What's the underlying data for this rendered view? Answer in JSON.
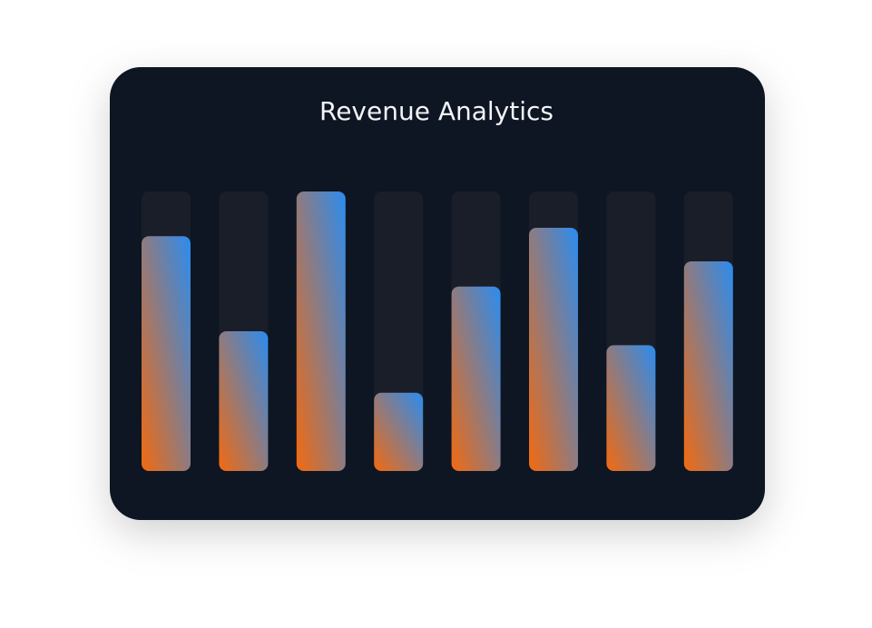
{
  "chart_data": {
    "type": "bar",
    "title": "Revenue Analytics",
    "values": [
      84,
      50,
      100,
      28,
      66,
      87,
      45,
      75
    ],
    "ylim": [
      0,
      100
    ],
    "gradient": [
      "#f26a10",
      "#2b8cf0"
    ],
    "track_color": "#1a1e29"
  }
}
